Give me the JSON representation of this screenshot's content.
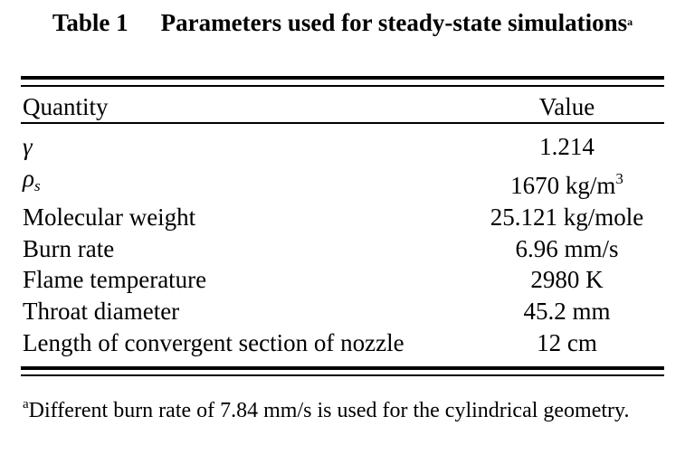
{
  "caption": {
    "table_number": "Table 1",
    "title": "Parameters used for steady-state simulations",
    "marker": "a"
  },
  "table": {
    "headers": {
      "quantity": "Quantity",
      "value": "Value"
    },
    "rows": [
      {
        "quantity": "γ",
        "value": "1.214"
      },
      {
        "quantity": "ρ",
        "quantity_sub": "s",
        "value": "1670 kg/m",
        "value_sup": "3"
      },
      {
        "quantity": "Molecular weight",
        "value": "25.121 kg/mole"
      },
      {
        "quantity": "Burn rate",
        "value": "6.96 mm/s"
      },
      {
        "quantity": "Flame temperature",
        "value": "2980 K"
      },
      {
        "quantity": "Throat diameter",
        "value": "45.2 mm"
      },
      {
        "quantity": "Length of convergent section of nozzle",
        "value": "12 cm"
      }
    ]
  },
  "footnote": {
    "marker": "a",
    "text": "Different burn rate of 7.84 mm/s is used for the cylindrical geometry."
  }
}
